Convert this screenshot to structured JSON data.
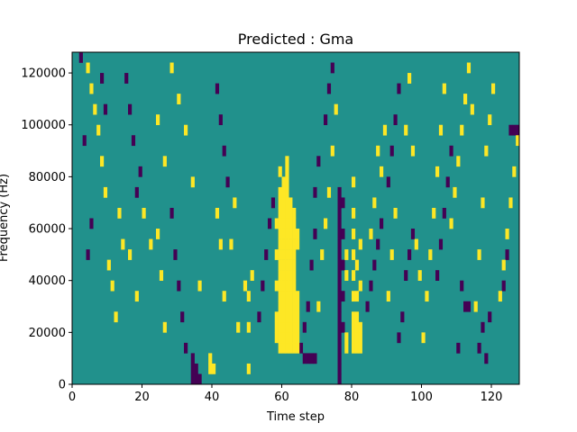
{
  "chart_data": {
    "type": "heatmap",
    "title": "Predicted : Gma",
    "xlabel": "Time step",
    "ylabel": "Frequency (Hz)",
    "xlim": [
      0,
      128
    ],
    "ylim": [
      0,
      128000
    ],
    "x_ticks": [
      0,
      20,
      40,
      60,
      80,
      100,
      120
    ],
    "y_ticks": [
      0,
      20000,
      40000,
      60000,
      80000,
      100000,
      120000
    ],
    "x_tick_labels": [
      "0",
      "20",
      "40",
      "60",
      "80",
      "100",
      "120"
    ],
    "y_tick_labels": [
      "0",
      "20000",
      "40000",
      "60000",
      "80000",
      "100000",
      "120000"
    ],
    "colormap": "viridis",
    "colors": {
      "background": "#21918c",
      "high": "#fde725",
      "low": "#440154"
    },
    "time_steps": 128,
    "frequency_bins": 32,
    "bin_height_hz": 4000,
    "highlight_cells": [
      [
        58,
        4
      ],
      [
        58,
        5
      ],
      [
        58,
        6
      ],
      [
        58,
        9
      ],
      [
        58,
        12
      ],
      [
        58,
        15
      ],
      [
        59,
        3
      ],
      [
        59,
        4
      ],
      [
        59,
        5
      ],
      [
        59,
        6
      ],
      [
        59,
        7
      ],
      [
        59,
        8
      ],
      [
        59,
        9
      ],
      [
        59,
        10
      ],
      [
        59,
        11
      ],
      [
        59,
        12
      ],
      [
        59,
        13
      ],
      [
        59,
        14
      ],
      [
        59,
        15
      ],
      [
        59,
        16
      ],
      [
        59,
        17
      ],
      [
        59,
        18
      ],
      [
        59,
        20
      ],
      [
        60,
        3
      ],
      [
        60,
        4
      ],
      [
        60,
        5
      ],
      [
        60,
        6
      ],
      [
        60,
        7
      ],
      [
        60,
        8
      ],
      [
        60,
        9
      ],
      [
        60,
        10
      ],
      [
        60,
        11
      ],
      [
        60,
        12
      ],
      [
        60,
        13
      ],
      [
        60,
        14
      ],
      [
        60,
        15
      ],
      [
        60,
        16
      ],
      [
        60,
        17
      ],
      [
        60,
        18
      ],
      [
        60,
        19
      ],
      [
        61,
        3
      ],
      [
        61,
        4
      ],
      [
        61,
        5
      ],
      [
        61,
        6
      ],
      [
        61,
        7
      ],
      [
        61,
        8
      ],
      [
        61,
        9
      ],
      [
        61,
        10
      ],
      [
        61,
        11
      ],
      [
        61,
        12
      ],
      [
        61,
        13
      ],
      [
        61,
        14
      ],
      [
        61,
        15
      ],
      [
        61,
        16
      ],
      [
        61,
        17
      ],
      [
        61,
        18
      ],
      [
        61,
        19
      ],
      [
        61,
        20
      ],
      [
        61,
        21
      ],
      [
        62,
        3
      ],
      [
        62,
        4
      ],
      [
        62,
        5
      ],
      [
        62,
        6
      ],
      [
        62,
        7
      ],
      [
        62,
        8
      ],
      [
        62,
        9
      ],
      [
        62,
        10
      ],
      [
        62,
        11
      ],
      [
        62,
        12
      ],
      [
        62,
        13
      ],
      [
        62,
        14
      ],
      [
        62,
        15
      ],
      [
        62,
        16
      ],
      [
        62,
        17
      ],
      [
        63,
        3
      ],
      [
        63,
        4
      ],
      [
        63,
        5
      ],
      [
        63,
        6
      ],
      [
        63,
        7
      ],
      [
        63,
        8
      ],
      [
        63,
        9
      ],
      [
        63,
        10
      ],
      [
        63,
        11
      ],
      [
        63,
        12
      ],
      [
        63,
        13
      ],
      [
        63,
        14
      ],
      [
        63,
        15
      ],
      [
        63,
        16
      ],
      [
        64,
        3
      ],
      [
        64,
        4
      ],
      [
        64,
        5
      ],
      [
        64,
        6
      ],
      [
        64,
        7
      ],
      [
        64,
        8
      ],
      [
        64,
        13
      ],
      [
        64,
        14
      ],
      [
        80,
        3
      ],
      [
        80,
        4
      ],
      [
        80,
        5
      ],
      [
        80,
        6
      ],
      [
        80,
        8
      ],
      [
        80,
        10
      ],
      [
        80,
        12
      ],
      [
        80,
        14
      ],
      [
        80,
        16
      ],
      [
        80,
        19
      ],
      [
        81,
        3
      ],
      [
        81,
        4
      ],
      [
        81,
        5
      ],
      [
        81,
        6
      ],
      [
        81,
        8
      ],
      [
        81,
        11
      ],
      [
        82,
        3
      ],
      [
        82,
        4
      ],
      [
        82,
        5
      ],
      [
        82,
        9
      ],
      [
        82,
        13
      ],
      [
        78,
        3
      ],
      [
        78,
        4
      ],
      [
        78,
        10
      ],
      [
        78,
        12
      ],
      [
        39,
        1
      ],
      [
        39,
        2
      ],
      [
        40,
        1
      ],
      [
        50,
        5
      ],
      [
        50,
        8
      ],
      [
        51,
        10
      ],
      [
        49,
        9
      ],
      [
        50,
        1
      ],
      [
        45,
        13
      ],
      [
        46,
        17
      ],
      [
        47,
        5
      ],
      [
        43,
        8
      ],
      [
        42,
        13
      ],
      [
        41,
        16
      ],
      [
        26,
        5
      ],
      [
        25,
        10
      ],
      [
        24,
        14
      ],
      [
        22,
        13
      ],
      [
        20,
        16
      ],
      [
        18,
        8
      ],
      [
        16,
        12
      ],
      [
        14,
        13
      ],
      [
        13,
        16
      ],
      [
        12,
        6
      ],
      [
        11,
        9
      ],
      [
        10,
        11
      ],
      [
        9,
        18
      ],
      [
        8,
        21
      ],
      [
        7,
        24
      ],
      [
        6,
        26
      ],
      [
        5,
        28
      ],
      [
        4,
        30
      ],
      [
        70,
        7
      ],
      [
        71,
        12
      ],
      [
        72,
        15
      ],
      [
        73,
        18
      ],
      [
        74,
        22
      ],
      [
        75,
        26
      ],
      [
        85,
        14
      ],
      [
        86,
        17
      ],
      [
        87,
        22
      ],
      [
        88,
        20
      ],
      [
        89,
        24
      ],
      [
        90,
        8
      ],
      [
        91,
        12
      ],
      [
        92,
        16
      ],
      [
        95,
        24
      ],
      [
        96,
        29
      ],
      [
        97,
        22
      ],
      [
        98,
        13
      ],
      [
        99,
        10
      ],
      [
        100,
        4
      ],
      [
        101,
        8
      ],
      [
        102,
        12
      ],
      [
        103,
        16
      ],
      [
        104,
        20
      ],
      [
        105,
        24
      ],
      [
        106,
        28
      ],
      [
        108,
        15
      ],
      [
        109,
        18
      ],
      [
        110,
        21
      ],
      [
        111,
        24
      ],
      [
        112,
        27
      ],
      [
        113,
        30
      ],
      [
        114,
        26
      ],
      [
        115,
        7
      ],
      [
        116,
        12
      ],
      [
        117,
        17
      ],
      [
        118,
        22
      ],
      [
        119,
        25
      ],
      [
        120,
        28
      ],
      [
        122,
        8
      ],
      [
        123,
        11
      ],
      [
        124,
        14
      ],
      [
        125,
        17
      ],
      [
        126,
        20
      ],
      [
        127,
        23
      ],
      [
        36,
        9
      ],
      [
        34,
        19
      ],
      [
        32,
        24
      ],
      [
        30,
        27
      ],
      [
        28,
        30
      ],
      [
        26,
        21
      ],
      [
        24,
        25
      ]
    ],
    "low_cells": [
      [
        34,
        0
      ],
      [
        34,
        1
      ],
      [
        34,
        2
      ],
      [
        35,
        0
      ],
      [
        35,
        1
      ],
      [
        36,
        0
      ],
      [
        66,
        2
      ],
      [
        67,
        2
      ],
      [
        68,
        2
      ],
      [
        69,
        2
      ],
      [
        65,
        3
      ],
      [
        66,
        5
      ],
      [
        67,
        7
      ],
      [
        68,
        11
      ],
      [
        69,
        14
      ],
      [
        76,
        0
      ],
      [
        76,
        1
      ],
      [
        76,
        2
      ],
      [
        76,
        3
      ],
      [
        76,
        4
      ],
      [
        76,
        5
      ],
      [
        76,
        6
      ],
      [
        76,
        7
      ],
      [
        76,
        8
      ],
      [
        76,
        9
      ],
      [
        76,
        10
      ],
      [
        76,
        11
      ],
      [
        76,
        12
      ],
      [
        76,
        13
      ],
      [
        76,
        14
      ],
      [
        76,
        15
      ],
      [
        76,
        16
      ],
      [
        76,
        17
      ],
      [
        76,
        18
      ],
      [
        77,
        5
      ],
      [
        77,
        8
      ],
      [
        77,
        11
      ],
      [
        77,
        14
      ],
      [
        77,
        17
      ],
      [
        84,
        7
      ],
      [
        85,
        9
      ],
      [
        86,
        11
      ],
      [
        87,
        13
      ],
      [
        88,
        15
      ],
      [
        93,
        4
      ],
      [
        94,
        6
      ],
      [
        95,
        10
      ],
      [
        96,
        12
      ],
      [
        97,
        14
      ],
      [
        125,
        24
      ],
      [
        126,
        24
      ],
      [
        127,
        24
      ],
      [
        124,
        12
      ],
      [
        123,
        9
      ],
      [
        112,
        7
      ],
      [
        113,
        7
      ],
      [
        110,
        3
      ],
      [
        111,
        9
      ],
      [
        18,
        18
      ],
      [
        19,
        20
      ],
      [
        17,
        23
      ],
      [
        16,
        26
      ],
      [
        15,
        29
      ],
      [
        42,
        25
      ],
      [
        41,
        28
      ],
      [
        43,
        22
      ],
      [
        44,
        19
      ],
      [
        55,
        12
      ],
      [
        56,
        15
      ],
      [
        57,
        17
      ],
      [
        54,
        9
      ],
      [
        53,
        6
      ],
      [
        72,
        25
      ],
      [
        73,
        28
      ],
      [
        74,
        30
      ],
      [
        70,
        21
      ],
      [
        69,
        18
      ],
      [
        90,
        19
      ],
      [
        91,
        22
      ],
      [
        92,
        25
      ],
      [
        93,
        28
      ],
      [
        104,
        10
      ],
      [
        105,
        13
      ],
      [
        106,
        16
      ],
      [
        107,
        19
      ],
      [
        108,
        22
      ],
      [
        116,
        3
      ],
      [
        117,
        5
      ],
      [
        118,
        2
      ],
      [
        119,
        6
      ],
      [
        2,
        31
      ],
      [
        3,
        23
      ],
      [
        4,
        12
      ],
      [
        5,
        15
      ],
      [
        8,
        29
      ],
      [
        9,
        26
      ],
      [
        28,
        16
      ],
      [
        29,
        12
      ],
      [
        30,
        9
      ],
      [
        31,
        6
      ],
      [
        32,
        3
      ]
    ]
  }
}
